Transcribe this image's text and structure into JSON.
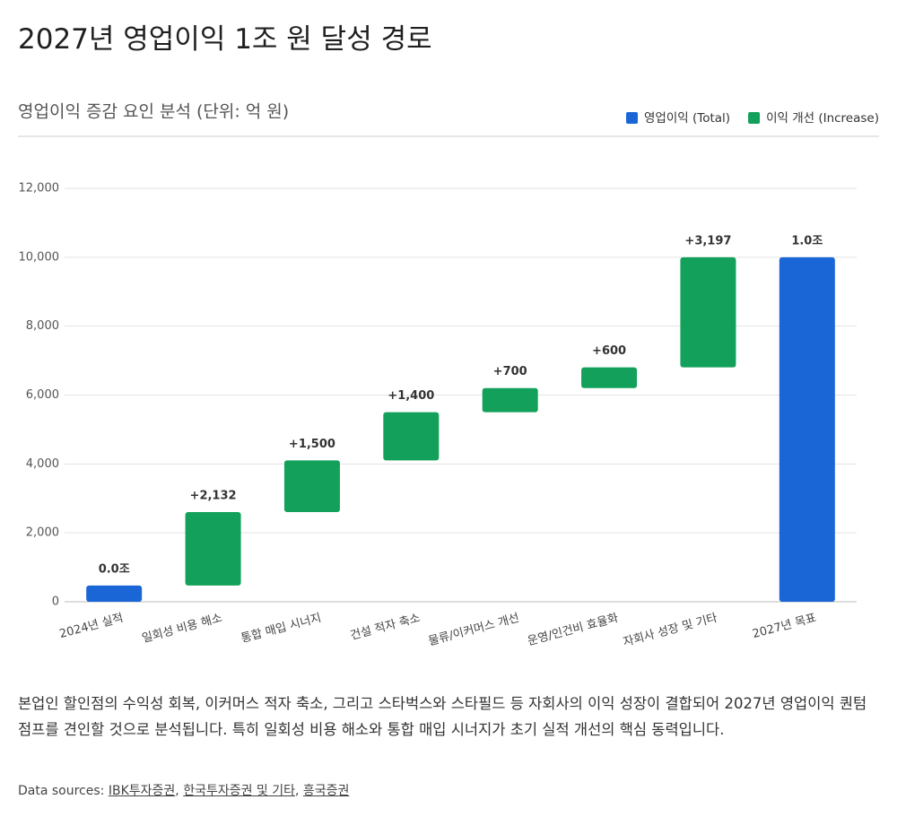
{
  "title": "2027년 영업이익 1조 원 달성 경로",
  "chart_data": {
    "type": "waterfall",
    "subtitle": "영업이익 증감 요인 분석 (단위: 억 원)",
    "categories": [
      "2024년 실적",
      "일회성 비용 해소",
      "통합 매입 시너지",
      "건설 적자 축소",
      "물류/이커머스 개선",
      "운영/인건비 효율화",
      "자회사 성장 및 기타",
      "2027년 목표"
    ],
    "series": [
      {
        "name": "영업이익 (Total)",
        "color": "#1a66d6",
        "role": "total",
        "values": [
          471,
          null,
          null,
          null,
          null,
          null,
          null,
          10000
        ],
        "value_labels": [
          "0.0조",
          null,
          null,
          null,
          null,
          null,
          null,
          "1.0조"
        ]
      },
      {
        "name": "이익 개선 (Increase)",
        "color": "#12a05a",
        "role": "increase",
        "values": [
          null,
          2132,
          1500,
          1400,
          700,
          600,
          3197,
          null
        ],
        "value_labels": [
          null,
          "+2,132",
          "+1,500",
          "+1,400",
          "+700",
          "+600",
          "+3,197",
          null
        ]
      }
    ],
    "ylim": [
      0,
      12000
    ],
    "yticks": [
      0,
      {
        "value": 2000,
        "label": "2,000"
      },
      {
        "value": 4000,
        "label": "4,000"
      },
      {
        "value": 6000,
        "label": "6,000"
      },
      {
        "value": 8000,
        "label": "8,000"
      },
      {
        "value": 10000,
        "label": "10,000"
      },
      {
        "value": 12000,
        "label": "12,000"
      }
    ],
    "grid": true,
    "legend": "top-right"
  },
  "description": "본업인 할인점의 수익성 회복, 이커머스 적자 축소, 그리고 스타벅스와 스타필드 등 자회사의 이익 성장이 결합되어 2027년 영업이익 퀀텀 점프를 견인할 것으로 분석됩니다. 특히 일회성 비용 해소와 통합 매입 시너지가 초기 실적 개선의 핵심 동력입니다.",
  "sources_label": "Data sources:",
  "sources_separator": ",",
  "sources": [
    "IBK투자증권",
    "한국투자증권 및 기타",
    "흥국증권"
  ]
}
